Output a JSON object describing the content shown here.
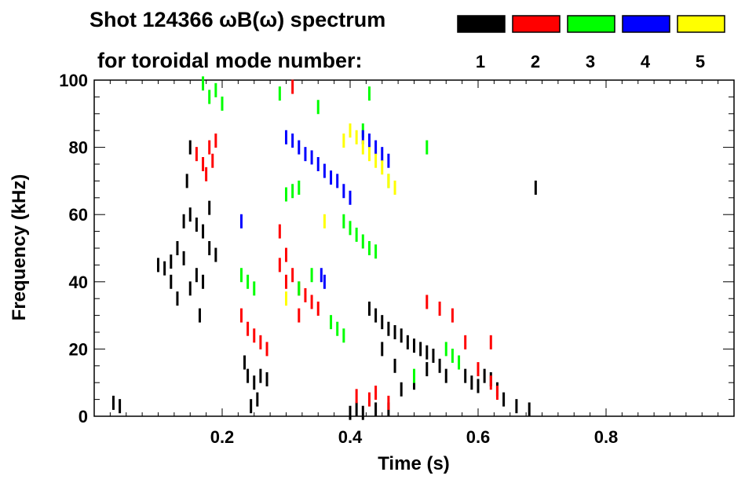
{
  "chart_data": {
    "type": "scatter",
    "title": "Shot 124366 ωB(ω) spectrum",
    "subtitle": "for toroidal mode number:",
    "xlabel": "Time (s)",
    "ylabel": "Frequency (kHz)",
    "xlim": [
      0.0,
      1.0
    ],
    "ylim": [
      0,
      100
    ],
    "x_ticks": [
      0.2,
      0.4,
      0.6,
      0.8
    ],
    "x_tick_labels": [
      "0.2",
      "0.4",
      "0.6",
      "0.8"
    ],
    "y_ticks": [
      0,
      20,
      40,
      60,
      80,
      100
    ],
    "y_tick_labels": [
      "0",
      "20",
      "40",
      "60",
      "80",
      "100"
    ],
    "grid": false,
    "legend_placement": "top",
    "legend": [
      {
        "label": "1",
        "color": "#000000"
      },
      {
        "label": "2",
        "color": "#ff0000"
      },
      {
        "label": "3",
        "color": "#00ff00"
      },
      {
        "label": "4",
        "color": "#0000ff"
      },
      {
        "label": "5",
        "color": "#ffff00"
      }
    ],
    "series": [
      {
        "name": "1",
        "color": "#000000",
        "points": [
          [
            0.1,
            45
          ],
          [
            0.11,
            44
          ],
          [
            0.12,
            46
          ],
          [
            0.13,
            50
          ],
          [
            0.14,
            58
          ],
          [
            0.15,
            60
          ],
          [
            0.16,
            57
          ],
          [
            0.17,
            55
          ],
          [
            0.18,
            50
          ],
          [
            0.19,
            48
          ],
          [
            0.14,
            47
          ],
          [
            0.16,
            42
          ],
          [
            0.15,
            38
          ],
          [
            0.13,
            35
          ],
          [
            0.17,
            40
          ],
          [
            0.15,
            80
          ],
          [
            0.145,
            70
          ],
          [
            0.18,
            62
          ],
          [
            0.12,
            40
          ],
          [
            0.165,
            30
          ],
          [
            0.235,
            16
          ],
          [
            0.24,
            12
          ],
          [
            0.25,
            10
          ],
          [
            0.26,
            12
          ],
          [
            0.27,
            11
          ],
          [
            0.255,
            5
          ],
          [
            0.245,
            3
          ],
          [
            0.43,
            32
          ],
          [
            0.44,
            30
          ],
          [
            0.45,
            28
          ],
          [
            0.46,
            26
          ],
          [
            0.47,
            25
          ],
          [
            0.48,
            24
          ],
          [
            0.49,
            22
          ],
          [
            0.5,
            21
          ],
          [
            0.51,
            20
          ],
          [
            0.52,
            19
          ],
          [
            0.53,
            18
          ],
          [
            0.54,
            15
          ],
          [
            0.45,
            20
          ],
          [
            0.47,
            15
          ],
          [
            0.5,
            10
          ],
          [
            0.48,
            8
          ],
          [
            0.52,
            14
          ],
          [
            0.55,
            12
          ],
          [
            0.58,
            12
          ],
          [
            0.59,
            10
          ],
          [
            0.6,
            9
          ],
          [
            0.61,
            12
          ],
          [
            0.62,
            11
          ],
          [
            0.63,
            8
          ],
          [
            0.64,
            5
          ],
          [
            0.66,
            3
          ],
          [
            0.68,
            2
          ],
          [
            0.41,
            2
          ],
          [
            0.42,
            1
          ],
          [
            0.44,
            2
          ],
          [
            0.46,
            2
          ],
          [
            0.4,
            1
          ],
          [
            0.03,
            4
          ],
          [
            0.04,
            3
          ],
          [
            0.69,
            68
          ]
        ]
      },
      {
        "name": "2",
        "color": "#ff0000",
        "points": [
          [
            0.17,
            75
          ],
          [
            0.18,
            80
          ],
          [
            0.19,
            82
          ],
          [
            0.175,
            72
          ],
          [
            0.16,
            78
          ],
          [
            0.185,
            76
          ],
          [
            0.23,
            30
          ],
          [
            0.24,
            26
          ],
          [
            0.25,
            24
          ],
          [
            0.26,
            22
          ],
          [
            0.27,
            20
          ],
          [
            0.29,
            55
          ],
          [
            0.3,
            48
          ],
          [
            0.31,
            42
          ],
          [
            0.32,
            38
          ],
          [
            0.33,
            36
          ],
          [
            0.34,
            34
          ],
          [
            0.35,
            32
          ],
          [
            0.3,
            40
          ],
          [
            0.32,
            30
          ],
          [
            0.29,
            45
          ],
          [
            0.52,
            34
          ],
          [
            0.54,
            32
          ],
          [
            0.56,
            30
          ],
          [
            0.58,
            22
          ],
          [
            0.6,
            14
          ],
          [
            0.62,
            10
          ],
          [
            0.63,
            7
          ],
          [
            0.41,
            6
          ],
          [
            0.43,
            5
          ],
          [
            0.44,
            7
          ],
          [
            0.46,
            4
          ],
          [
            0.31,
            98
          ],
          [
            0.62,
            22
          ]
        ]
      },
      {
        "name": "3",
        "color": "#00ff00",
        "points": [
          [
            0.18,
            95
          ],
          [
            0.19,
            97
          ],
          [
            0.2,
            93
          ],
          [
            0.17,
            99
          ],
          [
            0.23,
            42
          ],
          [
            0.24,
            40
          ],
          [
            0.25,
            38
          ],
          [
            0.3,
            66
          ],
          [
            0.31,
            67
          ],
          [
            0.32,
            68
          ],
          [
            0.39,
            58
          ],
          [
            0.4,
            56
          ],
          [
            0.41,
            54
          ],
          [
            0.42,
            52
          ],
          [
            0.43,
            50
          ],
          [
            0.44,
            49
          ],
          [
            0.55,
            20
          ],
          [
            0.56,
            18
          ],
          [
            0.57,
            16
          ],
          [
            0.32,
            38
          ],
          [
            0.34,
            42
          ],
          [
            0.37,
            28
          ],
          [
            0.38,
            26
          ],
          [
            0.39,
            24
          ],
          [
            0.29,
            96
          ],
          [
            0.35,
            92
          ],
          [
            0.46,
            70
          ],
          [
            0.43,
            96
          ],
          [
            0.42,
            85
          ],
          [
            0.5,
            12
          ],
          [
            0.52,
            80
          ]
        ]
      },
      {
        "name": "4",
        "color": "#0000ff",
        "points": [
          [
            0.3,
            83
          ],
          [
            0.31,
            82
          ],
          [
            0.32,
            80
          ],
          [
            0.33,
            78
          ],
          [
            0.34,
            77
          ],
          [
            0.35,
            75
          ],
          [
            0.36,
            73
          ],
          [
            0.37,
            71
          ],
          [
            0.38,
            70
          ],
          [
            0.39,
            67
          ],
          [
            0.4,
            65
          ],
          [
            0.42,
            83
          ],
          [
            0.43,
            82
          ],
          [
            0.44,
            80
          ],
          [
            0.45,
            78
          ],
          [
            0.46,
            76
          ],
          [
            0.355,
            42
          ],
          [
            0.36,
            40
          ],
          [
            0.23,
            58
          ]
        ]
      },
      {
        "name": "5",
        "color": "#ffff00",
        "points": [
          [
            0.4,
            85
          ],
          [
            0.41,
            83
          ],
          [
            0.42,
            80
          ],
          [
            0.43,
            78
          ],
          [
            0.44,
            76
          ],
          [
            0.45,
            74
          ],
          [
            0.46,
            70
          ],
          [
            0.47,
            68
          ],
          [
            0.39,
            82
          ],
          [
            0.36,
            58
          ],
          [
            0.3,
            35
          ]
        ]
      }
    ]
  }
}
